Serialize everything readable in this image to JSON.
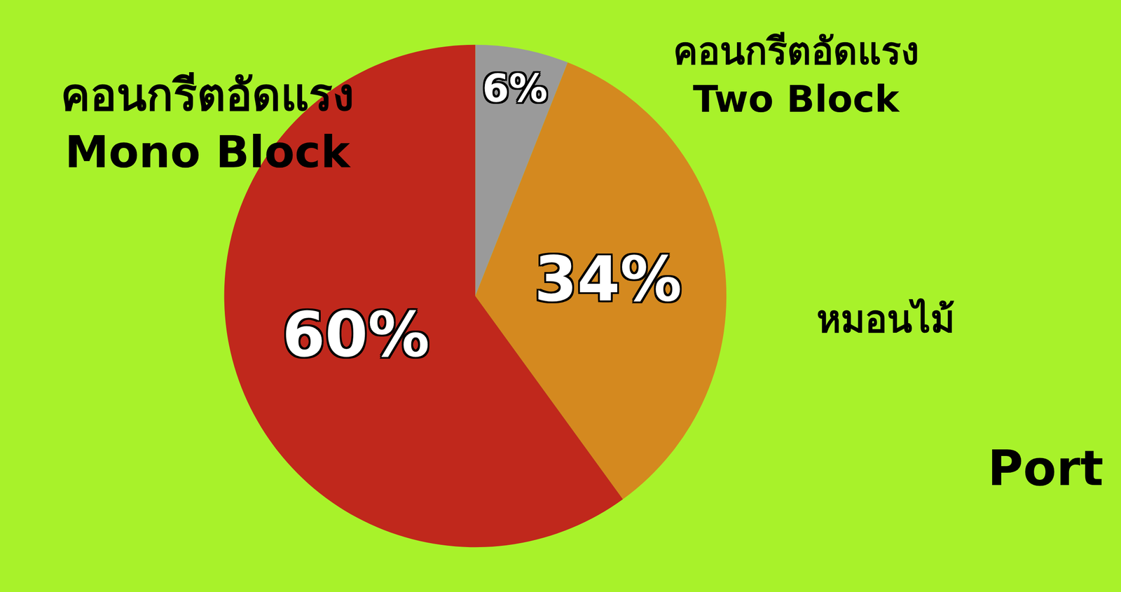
{
  "chart_data": {
    "type": "pie",
    "categories": [
      "คอนกรีตอัดแรง Two Block",
      "หมอนไม้",
      "คอนกรีตอัดแรง Mono Block"
    ],
    "values": [
      6,
      34,
      60
    ],
    "value_labels": [
      "6%",
      "34%",
      "60%"
    ],
    "colors": [
      "#9a9a9a",
      "#d4891f",
      "#c0281c"
    ],
    "data_labels": true,
    "annotations": [
      "Port"
    ]
  }
}
